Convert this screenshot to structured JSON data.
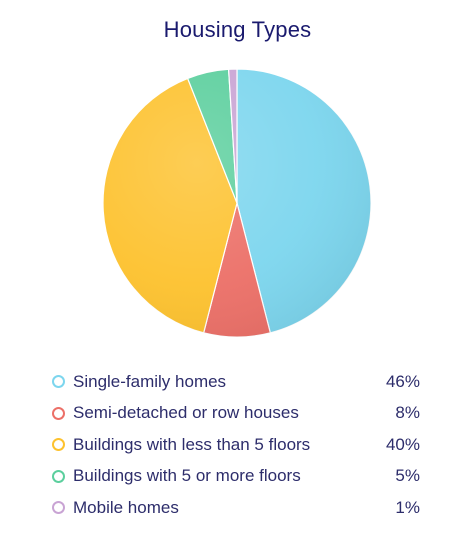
{
  "chart_data": {
    "type": "pie",
    "title": "Housing Types",
    "slices": [
      {
        "label": "Single-family homes",
        "value": 46,
        "display": "46%",
        "color": "#7dd6ee"
      },
      {
        "label": "Semi-detached or row houses",
        "value": 8,
        "display": "8%",
        "color": "#ec7068"
      },
      {
        "label": "Buildings with less than 5 floors",
        "value": 40,
        "display": "40%",
        "color": "#fdc22f"
      },
      {
        "label": "Buildings with 5 or more floors",
        "value": 5,
        "display": "5%",
        "color": "#5ccf9e"
      },
      {
        "label": "Mobile homes",
        "value": 1,
        "display": "1%",
        "color": "#c9a4d4"
      }
    ],
    "legend_position": "bottom",
    "start_angle": "top",
    "direction": "clockwise"
  }
}
